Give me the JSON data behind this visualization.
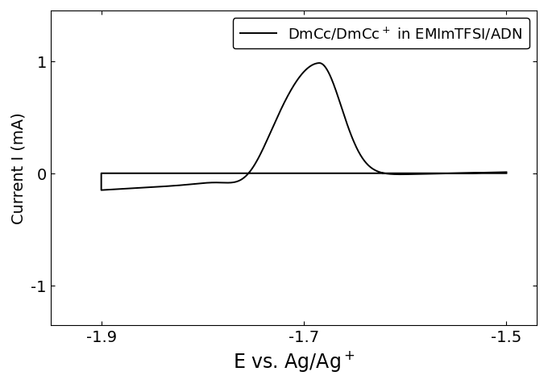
{
  "xlabel": "E vs. Ag/Ag$^+$",
  "ylabel": "Current I (mA)",
  "legend_label": "DmCc/DmCc$^+$ in EMImTFSI/ADN",
  "xlim": [
    -1.95,
    -1.47
  ],
  "ylim": [
    -1.35,
    1.45
  ],
  "xticks": [
    -1.9,
    -1.7,
    -1.5
  ],
  "yticks": [
    -1,
    0,
    1
  ],
  "line_color": "#000000",
  "line_width": 1.4,
  "background_color": "#ffffff",
  "xlabel_fontsize": 17,
  "ylabel_fontsize": 14,
  "tick_fontsize": 14,
  "legend_fontsize": 13,
  "figsize": [
    6.8,
    4.77
  ],
  "dpi": 100
}
